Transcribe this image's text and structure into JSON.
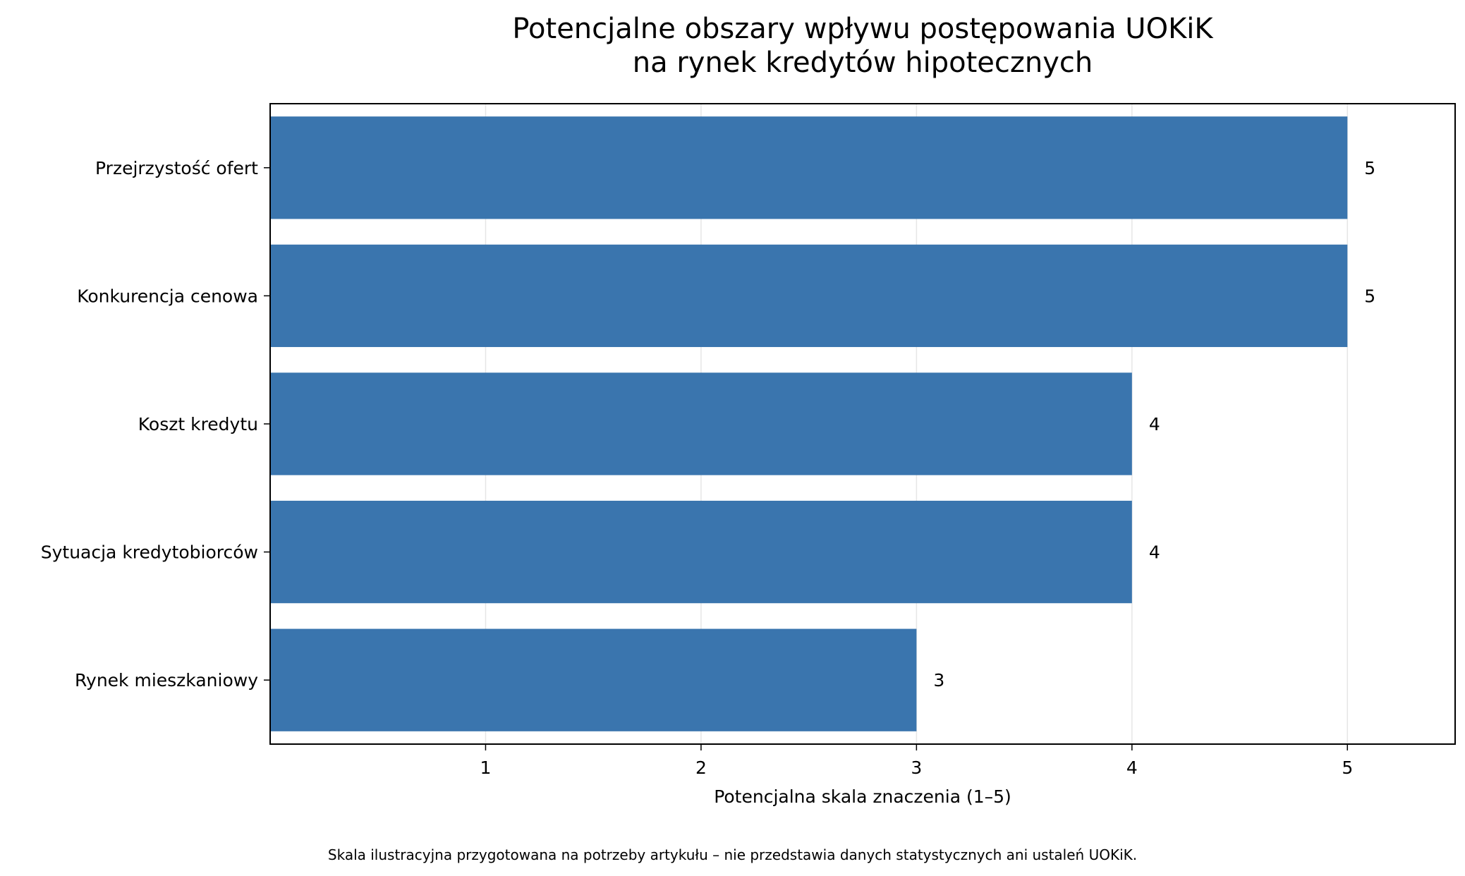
{
  "chart_data": {
    "type": "bar",
    "orientation": "horizontal",
    "title_lines": [
      "Potencjalne obszary wpływu postępowania UOKiK",
      "na rynek kredytów hipotecznych"
    ],
    "categories": [
      "Przejrzystość ofert",
      "Konkurencja cenowa",
      "Koszt kredytu",
      "Sytuacja kredytobiorców",
      "Rynek mieszkaniowy"
    ],
    "values": [
      5,
      5,
      4,
      4,
      3
    ],
    "data_labels": [
      "5",
      "5",
      "4",
      "4",
      "3"
    ],
    "xlabel": "Potencjalna skala znaczenia (1–5)",
    "ylabel": "",
    "xlim": [
      0,
      5.5
    ],
    "xticks": [
      1,
      2,
      3,
      4,
      5
    ],
    "xtick_labels": [
      "1",
      "2",
      "3",
      "4",
      "5"
    ],
    "grid": "vertical",
    "legend": "none",
    "bar_color": "#3a75ae",
    "grid_color": "#e6e6e6"
  },
  "footnote": "Skala ilustracyjna przygotowana na potrzeby artykułu – nie przedstawia danych statystycznych ani ustaleń UOKiK."
}
